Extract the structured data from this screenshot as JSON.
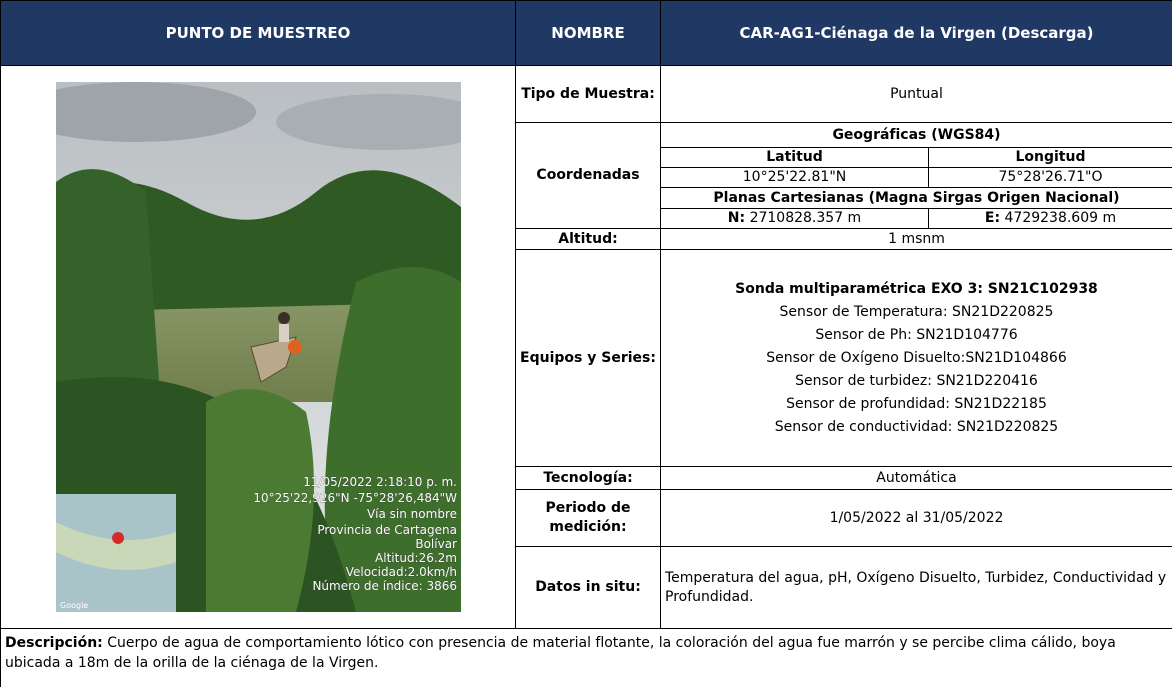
{
  "header": {
    "col1": "PUNTO DE MUESTREO",
    "col2": "NOMBRE",
    "col3": "CAR-AG1-Ciénaga de la Virgen (Descarga)"
  },
  "photo": {
    "overlay": [
      "11/05/2022 2:18:10 p. m.",
      "10°25'22,926\"N -75°28'26,484\"W",
      "Vía sin nombre",
      "Provincia de Cartagena",
      "Bolívar",
      "Altitud:26.2m",
      "Velocidad:2.0km/h",
      "Número de índice: 3866"
    ],
    "map_label": "Google"
  },
  "rows": {
    "tipo": {
      "label": "Tipo de Muestra:",
      "value": "Puntual"
    },
    "coordenadas": {
      "label": "Coordenadas",
      "geo_title": "Geográficas (WGS84)",
      "lat_label": "Latitud",
      "lat": "10°25'22.81\"N",
      "lon_label": "Longitud",
      "lon": "75°28'26.71\"O",
      "planas_title": "Planas Cartesianas (Magna Sirgas Origen Nacional)",
      "n_label": "N:",
      "n": "2710828.357 m",
      "e_label": "E:",
      "e": "4729238.609 m"
    },
    "altitud": {
      "label": "Altitud:",
      "value": "1 msnm"
    },
    "equipos": {
      "label": "Equipos y Series:",
      "title": "Sonda multiparamétrica EXO 3: SN21C102938",
      "items": [
        "Sensor de Temperatura: SN21D220825",
        "Sensor de Ph: SN21D104776",
        "Sensor de Oxígeno Disuelto:SN21D104866",
        "Sensor de turbidez: SN21D220416",
        "Sensor de profundidad: SN21D22185",
        "Sensor de conductividad: SN21D220825"
      ]
    },
    "tecnologia": {
      "label": "Tecnología:",
      "value": "Automática"
    },
    "periodo": {
      "label": "Periodo de medición:",
      "value": "1/05/2022 al 31/05/2022"
    },
    "datos": {
      "label": "Datos in situ:",
      "value": "Temperatura del agua, pH, Oxígeno Disuelto, Turbidez, Conductividad y Profundidad."
    }
  },
  "descripcion": {
    "label": "Descripción:",
    "text": "Cuerpo de agua de comportamiento lótico con presencia de material flotante, la coloración del agua fue marrón y se percibe clima cálido, boya ubicada a 18m de la orilla de la ciénaga de la Virgen."
  }
}
